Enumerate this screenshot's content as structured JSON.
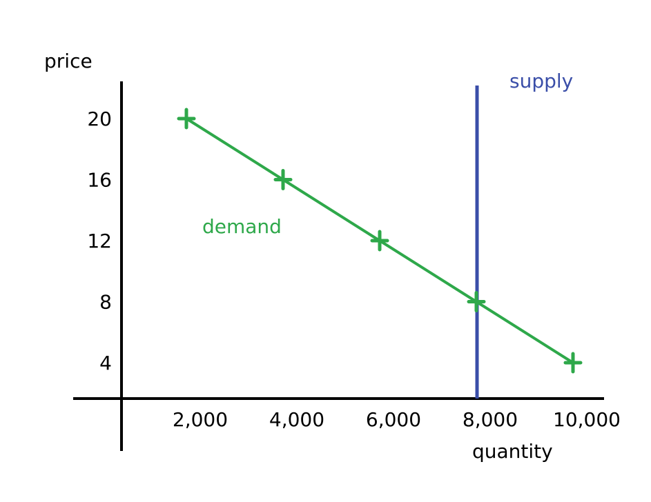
{
  "chart_data": {
    "type": "line",
    "xlabel": "quantity",
    "ylabel": "price",
    "x_ticks": [
      "2,000",
      "4,000",
      "6,000",
      "8,000",
      "10,000"
    ],
    "y_ticks": [
      "4",
      "8",
      "12",
      "16",
      "20"
    ],
    "xlim": [
      0,
      10700
    ],
    "ylim": [
      0,
      23.5
    ],
    "series": [
      {
        "name": "demand",
        "color": "#2ea84a",
        "points": [
          {
            "x": 2000,
            "y": 20
          },
          {
            "x": 4000,
            "y": 16
          },
          {
            "x": 6000,
            "y": 12
          },
          {
            "x": 8000,
            "y": 8
          },
          {
            "x": 10000,
            "y": 4
          }
        ]
      },
      {
        "name": "supply",
        "color": "#3a4ea8",
        "vertical_at_x": 8000
      }
    ]
  }
}
